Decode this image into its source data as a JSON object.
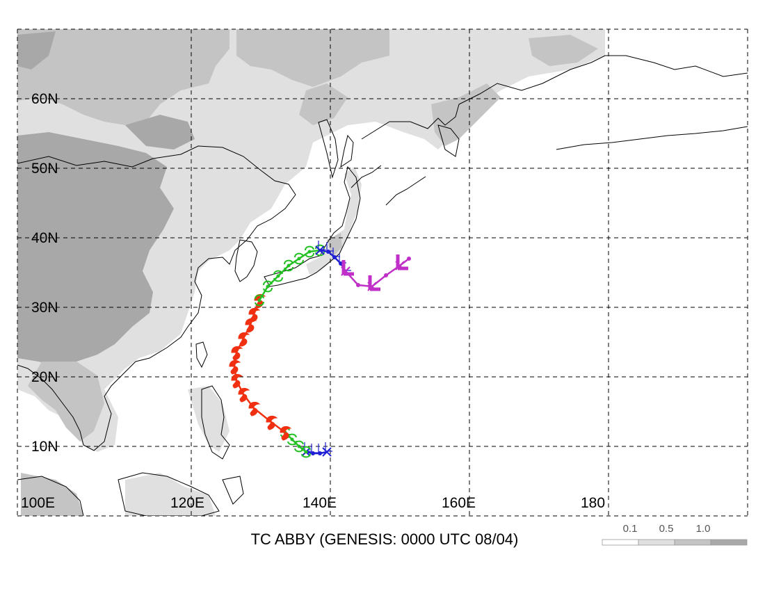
{
  "title": "TC ABBY (GENESIS: 0000 UTC 08/04)",
  "lat_labels": [
    "60N",
    "50N",
    "40N",
    "30N",
    "20N",
    "10N"
  ],
  "lon_labels": [
    "100E",
    "120E",
    "140E",
    "160E",
    "180"
  ],
  "map": {
    "lon_range": [
      100,
      200
    ],
    "lat_range": [
      5,
      75
    ],
    "grid_lons": [
      100,
      120,
      140,
      160,
      180,
      200
    ],
    "grid_lats": [
      10,
      20,
      30,
      40,
      50,
      60,
      70
    ],
    "shading_color_light": "#e0e0e0",
    "shading_color_mid": "#c4c4c4",
    "shading_color_dark": "#a8a8a8"
  },
  "legend": {
    "labels": [
      "0.1",
      "0.5",
      "1.0"
    ],
    "colors": [
      "#ffffff",
      "#e0e0e0",
      "#c4c4c4",
      "#a8a8a8"
    ]
  },
  "track": {
    "segments": [
      {
        "stage": "depression",
        "color": "#1f1fd6",
        "points": [
          [
            144.5,
            9.2
          ],
          [
            143.5,
            9.0
          ],
          [
            142.5,
            9.0
          ],
          [
            141.5,
            9.2
          ]
        ]
      },
      {
        "stage": "tropical-storm",
        "color": "#22c022",
        "points": [
          [
            141.5,
            9.2
          ],
          [
            140.5,
            10.0
          ],
          [
            139.5,
            11.0
          ],
          [
            138.5,
            12.0
          ]
        ]
      },
      {
        "stage": "typhoon",
        "color": "#f03010",
        "points": [
          [
            138.5,
            12.0
          ],
          [
            136.5,
            13.5
          ],
          [
            134.0,
            15.5
          ],
          [
            132.5,
            17.5
          ],
          [
            131.5,
            19.5
          ],
          [
            131.2,
            21.5
          ],
          [
            131.5,
            23.5
          ],
          [
            132.5,
            25.5
          ],
          [
            133.5,
            27.5
          ],
          [
            134.0,
            29.0
          ],
          [
            134.8,
            31.0
          ]
        ]
      },
      {
        "stage": "tropical-storm",
        "color": "#22c022",
        "points": [
          [
            134.8,
            31.0
          ],
          [
            136.0,
            33.0
          ],
          [
            137.5,
            34.5
          ],
          [
            139.0,
            36.0
          ],
          [
            140.5,
            37.0
          ],
          [
            142.0,
            38.0
          ],
          [
            143.5,
            38.2
          ]
        ]
      },
      {
        "stage": "depression",
        "color": "#1f1fd6",
        "points": [
          [
            143.5,
            38.2
          ],
          [
            144.7,
            38.0
          ],
          [
            145.6,
            37.2
          ],
          [
            146.5,
            36.3
          ],
          [
            147.2,
            35.2
          ]
        ]
      },
      {
        "stage": "extratropical",
        "color": "#c030c8",
        "points": [
          [
            147.2,
            35.2
          ],
          [
            149.0,
            33.2
          ],
          [
            151.0,
            33.0
          ],
          [
            153.0,
            34.6
          ],
          [
            155.0,
            36.0
          ],
          [
            156.3,
            37.0
          ]
        ]
      }
    ]
  }
}
